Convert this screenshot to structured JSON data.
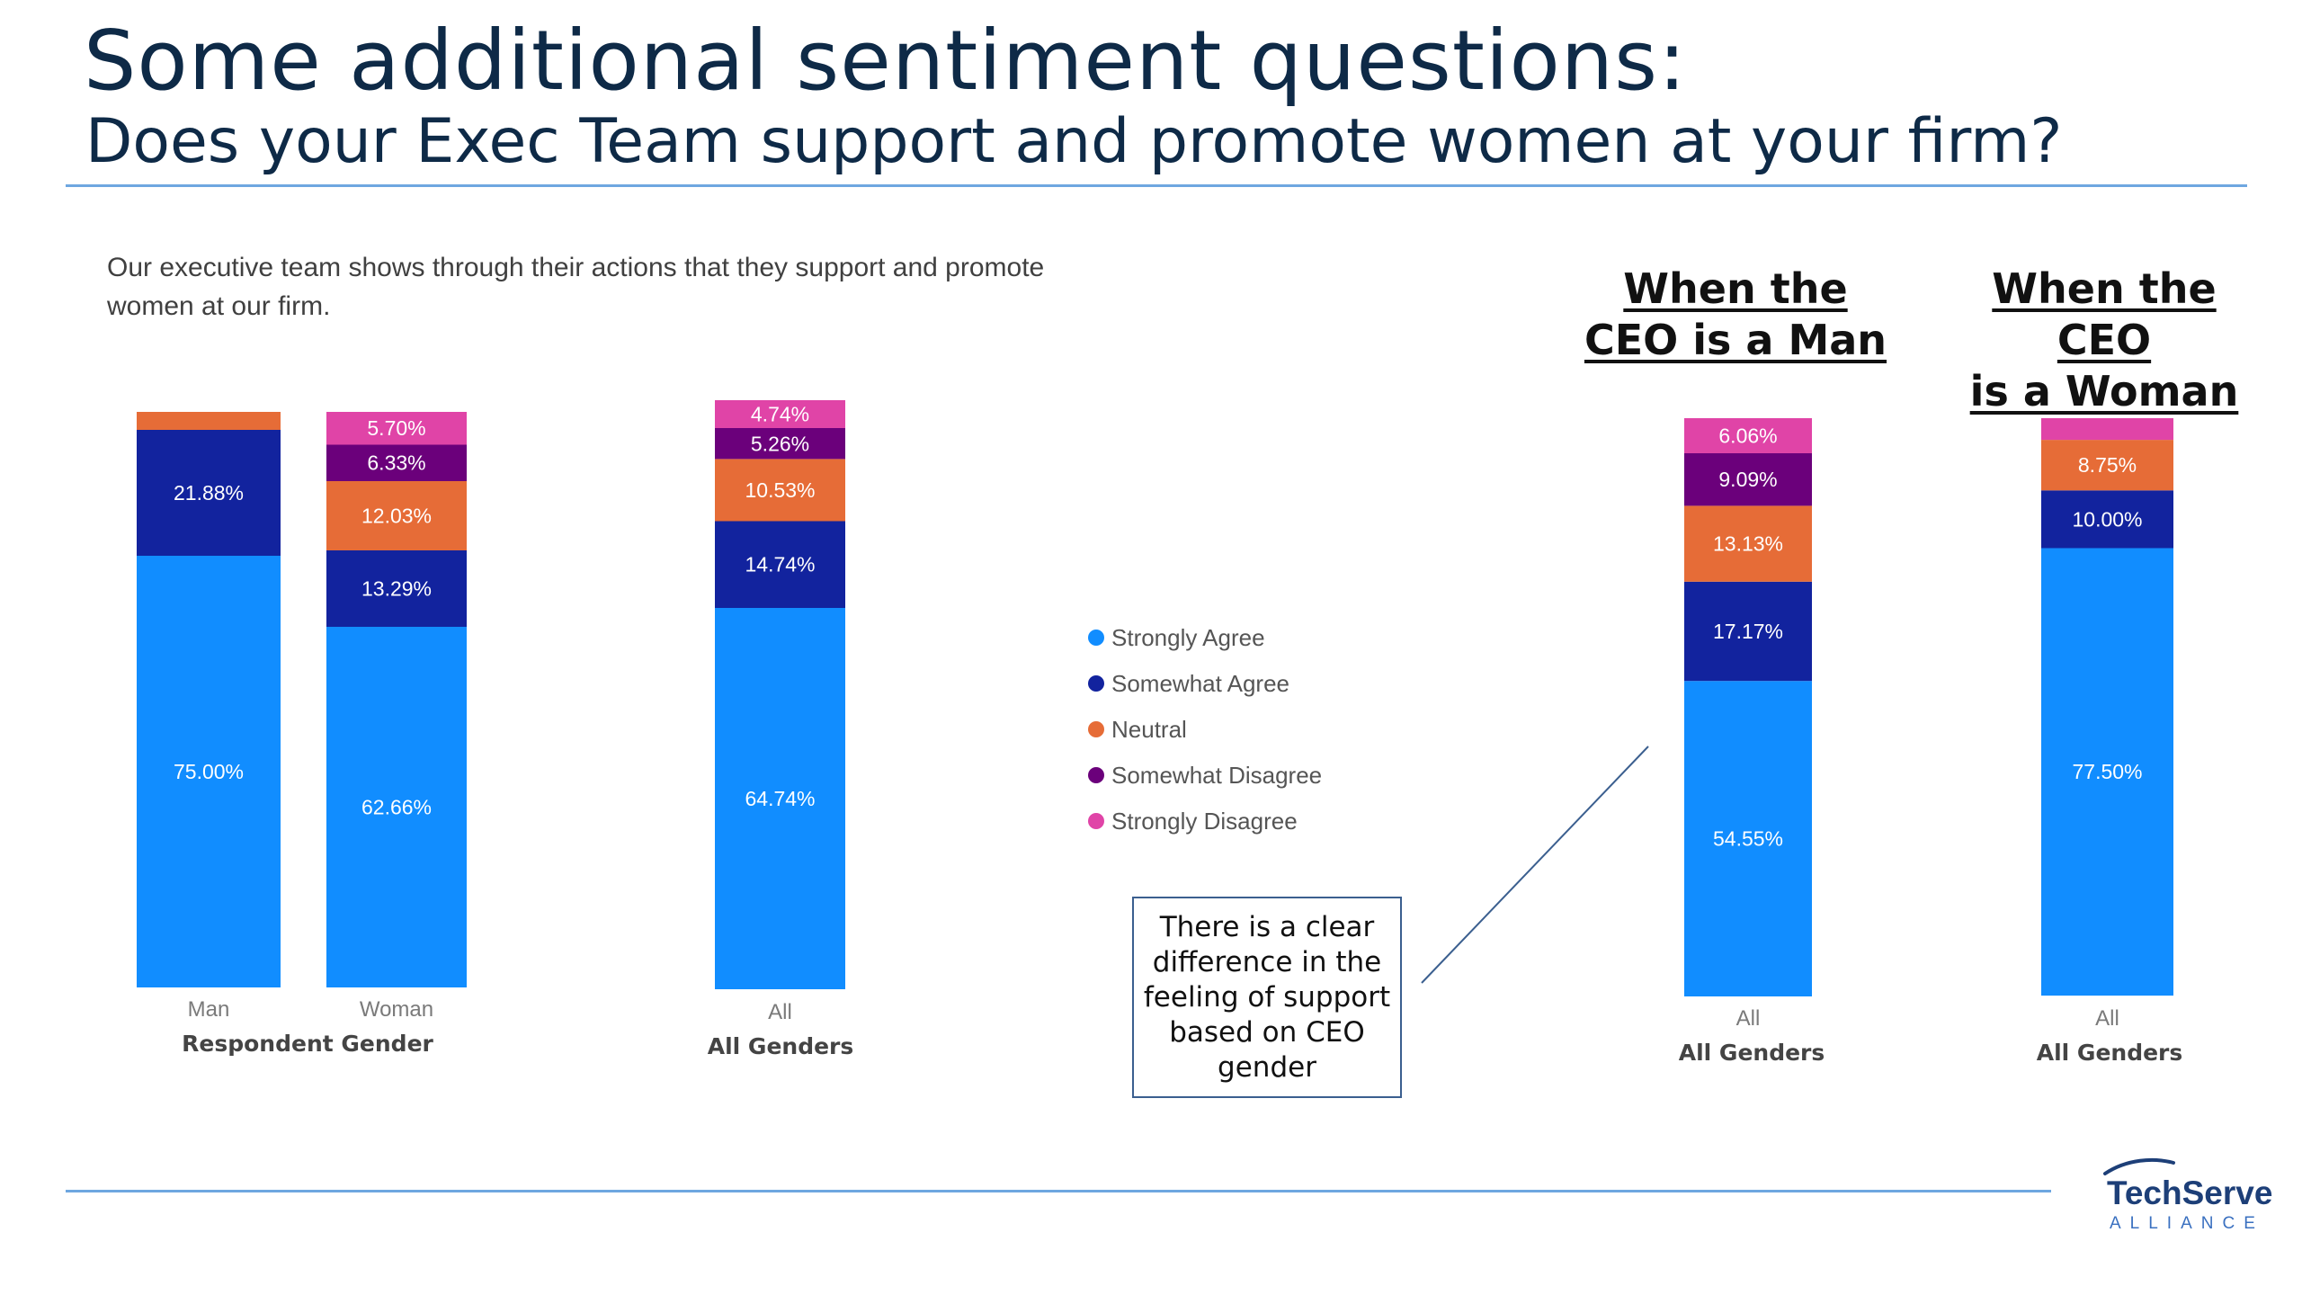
{
  "header": {
    "title": "Some additional sentiment questions:",
    "subtitle": "Does your Exec Team support and promote women at your firm?"
  },
  "question": "Our executive team shows through their actions that they support and promote women at our firm.",
  "ceo_headings": [
    {
      "line1": "When the",
      "line2": "CEO is a Man"
    },
    {
      "line1": "When the CEO",
      "line2": "is a Woman"
    }
  ],
  "callout": {
    "text": "There is a clear difference in the feeling of support based on CEO gender"
  },
  "logo": {
    "name": "TechServe",
    "sub": "ALLIANCE"
  },
  "colors": {
    "strongly_agree": "#118dff",
    "somewhat_agree": "#12239e",
    "neutral": "#e66c37",
    "somewhat_disagree": "#6b007b",
    "strongly_disagree": "#e044a7"
  },
  "chart_data": [
    {
      "type": "bar",
      "stacked": true,
      "percent": true,
      "xlabel": "Respondent Gender",
      "categories": [
        "Man",
        "Woman"
      ],
      "series": [
        {
          "name": "Strongly Agree",
          "values": [
            75.0,
            62.66
          ],
          "labels": [
            "75.00%",
            "62.66%"
          ]
        },
        {
          "name": "Somewhat Agree",
          "values": [
            21.88,
            13.29
          ],
          "labels": [
            "21.88%",
            "13.29%"
          ]
        },
        {
          "name": "Neutral",
          "values": [
            3.12,
            12.03
          ],
          "labels": [
            "",
            "12.03%"
          ]
        },
        {
          "name": "Somewhat Disagree",
          "values": [
            0,
            6.33
          ],
          "labels": [
            "",
            "6.33%"
          ]
        },
        {
          "name": "Strongly Disagree",
          "values": [
            0,
            5.7
          ],
          "labels": [
            "",
            "5.70%"
          ]
        }
      ]
    },
    {
      "type": "bar",
      "stacked": true,
      "percent": true,
      "xlabel": "All Genders",
      "categories": [
        "All"
      ],
      "series": [
        {
          "name": "Strongly Agree",
          "values": [
            64.74
          ],
          "labels": [
            "64.74%"
          ]
        },
        {
          "name": "Somewhat Agree",
          "values": [
            14.74
          ],
          "labels": [
            "14.74%"
          ]
        },
        {
          "name": "Neutral",
          "values": [
            10.53
          ],
          "labels": [
            "10.53%"
          ]
        },
        {
          "name": "Somewhat Disagree",
          "values": [
            5.26
          ],
          "labels": [
            "5.26%"
          ]
        },
        {
          "name": "Strongly Disagree",
          "values": [
            4.74
          ],
          "labels": [
            "4.74%"
          ]
        }
      ]
    },
    {
      "type": "bar",
      "stacked": true,
      "percent": true,
      "xlabel": "All Genders",
      "categories": [
        "All"
      ],
      "series": [
        {
          "name": "Strongly Agree",
          "values": [
            54.55
          ],
          "labels": [
            "54.55%"
          ]
        },
        {
          "name": "Somewhat Agree",
          "values": [
            17.17
          ],
          "labels": [
            "17.17%"
          ]
        },
        {
          "name": "Neutral",
          "values": [
            13.13
          ],
          "labels": [
            "13.13%"
          ]
        },
        {
          "name": "Somewhat Disagree",
          "values": [
            9.09
          ],
          "labels": [
            "9.09%"
          ]
        },
        {
          "name": "Strongly Disagree",
          "values": [
            6.06
          ],
          "labels": [
            "6.06%"
          ]
        }
      ]
    },
    {
      "type": "bar",
      "stacked": true,
      "percent": true,
      "xlabel": "All Genders",
      "categories": [
        "All"
      ],
      "series": [
        {
          "name": "Strongly Agree",
          "values": [
            77.5
          ],
          "labels": [
            "77.50%"
          ]
        },
        {
          "name": "Somewhat Agree",
          "values": [
            10.0
          ],
          "labels": [
            "10.00%"
          ]
        },
        {
          "name": "Neutral",
          "values": [
            8.75
          ],
          "labels": [
            "8.75%"
          ]
        },
        {
          "name": "Somewhat Disagree",
          "values": [
            0
          ],
          "labels": [
            ""
          ]
        },
        {
          "name": "Strongly Disagree",
          "values": [
            3.75
          ],
          "labels": [
            ""
          ]
        }
      ]
    }
  ],
  "legend": [
    "Strongly Agree",
    "Somewhat Agree",
    "Neutral",
    "Somewhat Disagree",
    "Strongly Disagree"
  ]
}
